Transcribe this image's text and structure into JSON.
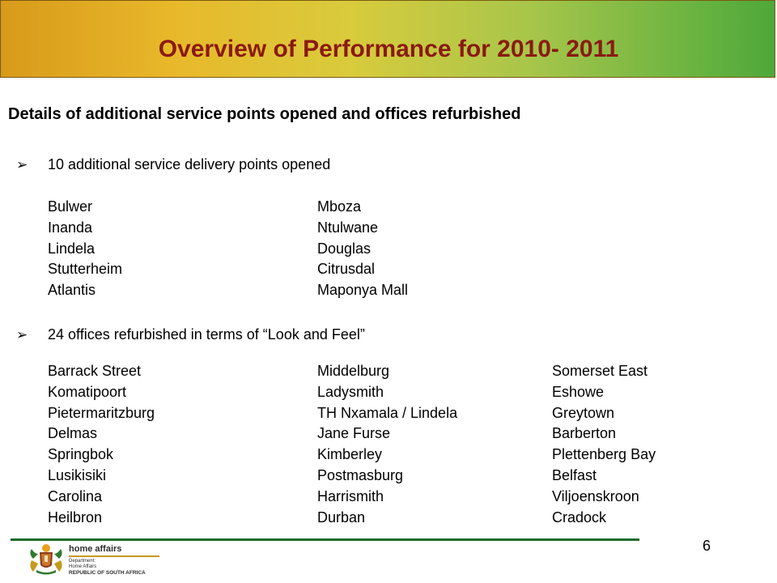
{
  "header": {
    "title": "Overview of Performance for 2010- 2011"
  },
  "subtitle": "Details of additional service points opened and offices refurbished",
  "section1": {
    "bullet": "10 additional service delivery points opened",
    "col1": [
      "Bulwer",
      "Inanda",
      "Lindela",
      "Stutterheim",
      "Atlantis"
    ],
    "col2": [
      "Mboza",
      "Ntulwane",
      "Douglas",
      "Citrusdal",
      "Maponya Mall"
    ]
  },
  "section2": {
    "bullet": "24 offices refurbished in terms of “Look and Feel”",
    "col1": [
      "Barrack Street",
      "Komatipoort",
      "Pietermaritzburg",
      "Delmas",
      "Springbok",
      "Lusikisiki",
      "Carolina",
      "Heilbron"
    ],
    "col2": [
      "Middelburg",
      "Ladysmith",
      "TH Nxamala / Lindela",
      "Jane Furse",
      "Kimberley",
      "Postmasburg",
      "Harrismith",
      "Durban"
    ],
    "col3": [
      "Somerset East",
      "Eshowe",
      "Greytown",
      "Barberton",
      "Plettenberg Bay",
      "Belfast",
      "Viljoenskroon",
      "Cradock"
    ]
  },
  "footer": {
    "page_number": "6",
    "logo": {
      "brand": "home affairs",
      "line1": "Department:",
      "line2": "Home Affairs",
      "line3": "REPUBLIC OF SOUTH AFRICA"
    }
  },
  "colors": {
    "title": "#8a1a12",
    "footer_line": "#1b6b2a"
  },
  "icons": {
    "bullet": "arrow-bullet-icon",
    "logo": "coat-of-arms-icon"
  }
}
